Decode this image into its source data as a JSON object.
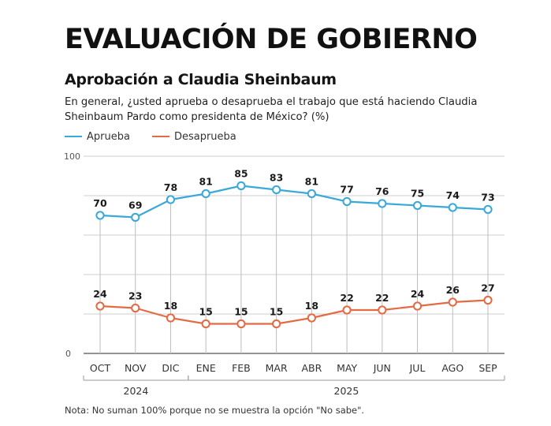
{
  "header": {
    "title": "EVALUACIÓN DE GOBIERNO",
    "subtitle": "Aprobación a Claudia Sheinbaum",
    "question": "En general, ¿usted aprueba o desaprueba el trabajo que está haciendo Claudia Sheinbaum Pardo como presidenta de México? (%)"
  },
  "colors": {
    "aprueba": "#3aa8d8",
    "desaprueba": "#e36b44",
    "grid": "#cfcfcf",
    "axis": "#555555"
  },
  "chart_data": {
    "type": "line",
    "title": "Aprobación a Claudia Sheinbaum",
    "xlabel": "",
    "ylabel": "",
    "ylim": [
      0,
      100
    ],
    "y_ticks": [
      "0",
      "100"
    ],
    "categories": [
      "OCT",
      "NOV",
      "DIC",
      "ENE",
      "FEB",
      "MAR",
      "ABR",
      "MAY",
      "JUN",
      "JUL",
      "AGO",
      "SEP"
    ],
    "year_groups": [
      {
        "label": "2024",
        "start": 0,
        "end": 2
      },
      {
        "label": "2025",
        "start": 3,
        "end": 11
      }
    ],
    "series": [
      {
        "name": "Aprueba",
        "color_key": "aprueba",
        "values": [
          70,
          69,
          78,
          81,
          85,
          83,
          81,
          77,
          76,
          75,
          74,
          73
        ]
      },
      {
        "name": "Desaprueba",
        "color_key": "desaprueba",
        "values": [
          24,
          23,
          18,
          15,
          15,
          15,
          18,
          22,
          22,
          24,
          26,
          27
        ]
      }
    ],
    "legend_position": "top-left",
    "grid": true
  },
  "footer": {
    "note": "Nota: No suman 100% porque no se muestra la opción \"No sabe\"."
  }
}
